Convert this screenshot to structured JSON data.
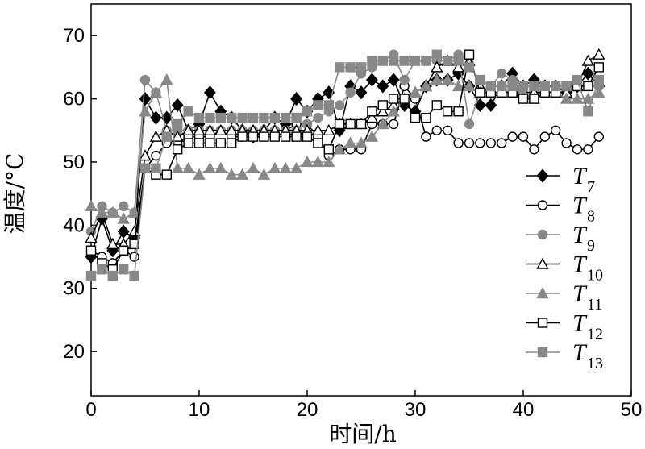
{
  "chart_data": {
    "type": "line",
    "xlabel": "时间/h",
    "ylabel": "温度/°C",
    "xlim": [
      0,
      50
    ],
    "ylim": [
      13,
      75
    ],
    "xticks": [
      0,
      10,
      20,
      30,
      40,
      50
    ],
    "yticks": [
      20,
      30,
      40,
      50,
      60,
      70
    ],
    "grid": false,
    "legend_position": "right",
    "x": [
      0,
      1,
      2,
      3,
      4,
      5,
      6,
      7,
      8,
      9,
      10,
      11,
      12,
      13,
      14,
      15,
      16,
      17,
      18,
      19,
      20,
      21,
      22,
      23,
      24,
      25,
      26,
      27,
      28,
      29,
      30,
      31,
      32,
      33,
      34,
      35,
      36,
      37,
      38,
      39,
      40,
      41,
      42,
      43,
      44,
      45,
      46,
      47
    ],
    "series": [
      {
        "name": "T",
        "sub": "7",
        "color": "#000000",
        "marker": "diamond-filled",
        "values": [
          35,
          41,
          36,
          39,
          38,
          60,
          57,
          57,
          59,
          55,
          56,
          61,
          58,
          57,
          55,
          54,
          55,
          57,
          56,
          60,
          58,
          60,
          61,
          55,
          62,
          61,
          63,
          62,
          63,
          59,
          58,
          62,
          63,
          63,
          64,
          62,
          59,
          59,
          62,
          64,
          62,
          63,
          62,
          62,
          61,
          62,
          64,
          62
        ]
      },
      {
        "name": "T",
        "sub": "8",
        "color": "#000000",
        "marker": "circle-open",
        "values": [
          36,
          35,
          34,
          36,
          35,
          49,
          51,
          53,
          53,
          54,
          54,
          54,
          55,
          54,
          54,
          54,
          55,
          55,
          55,
          56,
          56,
          54,
          51,
          52,
          52,
          52,
          56,
          56,
          56,
          62,
          60,
          54,
          55,
          55,
          53,
          53,
          53,
          53,
          53,
          54,
          54,
          52,
          54,
          55,
          53,
          52,
          52,
          54
        ]
      },
      {
        "name": "T",
        "sub": "9",
        "color": "#888888",
        "marker": "circle-filled",
        "values": [
          39,
          43,
          42,
          43,
          42,
          63,
          61,
          55,
          55,
          55,
          55,
          55,
          55,
          55,
          55,
          55,
          55,
          55,
          55,
          55,
          56,
          57,
          58,
          59,
          61,
          64,
          65,
          66,
          67,
          63,
          66,
          66,
          66,
          66,
          67,
          56,
          61,
          62,
          64,
          63,
          61,
          61,
          62,
          62,
          62,
          62,
          62,
          62
        ]
      },
      {
        "name": "T",
        "sub": "10",
        "color": "#000000",
        "marker": "triangle-open",
        "values": [
          38,
          42,
          37,
          37,
          39,
          51,
          54,
          55,
          54,
          55,
          55,
          55,
          55,
          55,
          55,
          55,
          55,
          55,
          55,
          55,
          55,
          55,
          55,
          56,
          56,
          56,
          57,
          58,
          59,
          60,
          61,
          62,
          65,
          66,
          65,
          66,
          62,
          61,
          61,
          61,
          61,
          61,
          61,
          61,
          61,
          62,
          66,
          67
        ]
      },
      {
        "name": "T",
        "sub": "11",
        "color": "#888888",
        "marker": "triangle-filled",
        "values": [
          43,
          42,
          42,
          41,
          42,
          58,
          61,
          63,
          49,
          49,
          48,
          49,
          49,
          48,
          48,
          49,
          48,
          49,
          49,
          49,
          50,
          50,
          50,
          52,
          53,
          53,
          54,
          56,
          58,
          60,
          61,
          62,
          63,
          63,
          62,
          62,
          61,
          61,
          61,
          61,
          61,
          60,
          61,
          61,
          60,
          60,
          60,
          61
        ]
      },
      {
        "name": "T",
        "sub": "12",
        "color": "#000000",
        "marker": "square-open",
        "values": [
          36,
          34,
          33,
          36,
          37,
          49,
          48,
          48,
          52,
          53,
          53,
          53,
          53,
          53,
          54,
          54,
          54,
          54,
          54,
          54,
          54,
          53,
          52,
          56,
          56,
          56,
          58,
          59,
          60,
          60,
          57,
          57,
          59,
          58,
          58,
          67,
          61,
          61,
          61,
          61,
          60,
          60,
          61,
          61,
          62,
          62,
          62,
          65
        ]
      },
      {
        "name": "T",
        "sub": "13",
        "color": "#888888",
        "marker": "square-filled",
        "values": [
          32,
          33,
          32,
          33,
          32,
          49,
          49,
          54,
          56,
          58,
          57,
          57,
          57,
          57,
          57,
          57,
          57,
          57,
          57,
          57,
          58,
          59,
          59,
          65,
          65,
          65,
          66,
          66,
          66,
          66,
          66,
          66,
          67,
          66,
          66,
          65,
          63,
          62,
          62,
          62,
          62,
          62,
          62,
          62,
          62,
          63,
          58,
          63
        ]
      }
    ]
  }
}
